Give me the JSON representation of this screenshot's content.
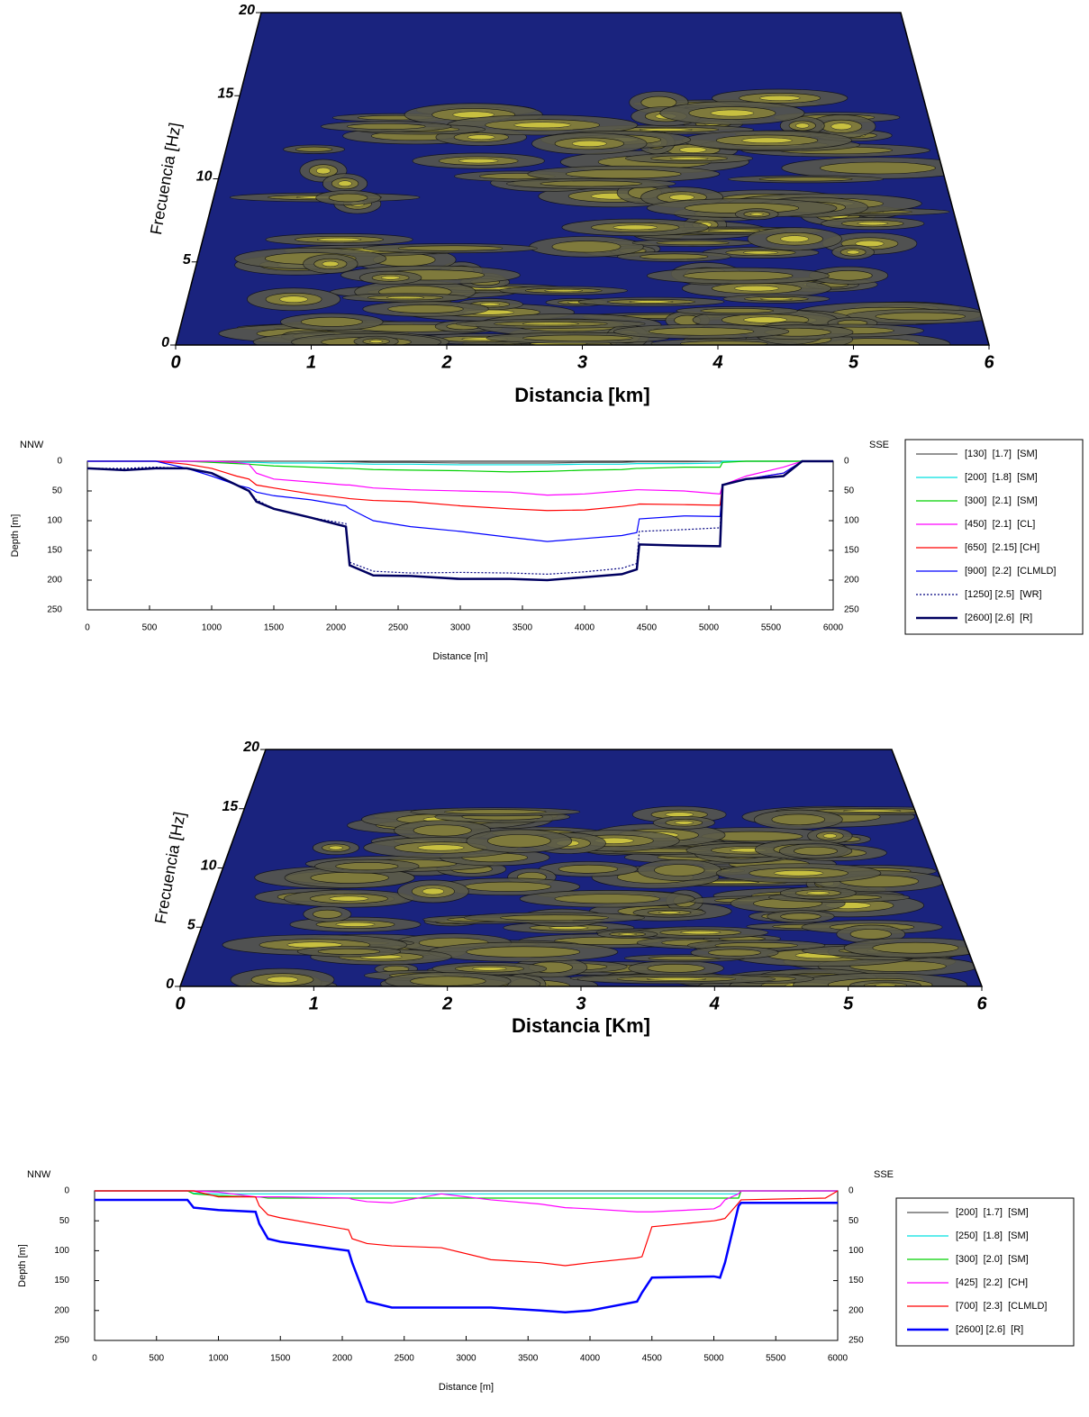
{
  "chart_data": [
    {
      "type": "contour",
      "xlabel": "Distancia [km]",
      "ylabel": "Frecuencia [Hz]",
      "xlim": [
        0,
        6
      ],
      "xticks": [
        0,
        1,
        2,
        3,
        4,
        5,
        6
      ],
      "ylim": [
        0,
        20
      ],
      "yticks": [
        0,
        5,
        10,
        15,
        20
      ]
    },
    {
      "type": "line",
      "xlabel": "Distance [m]",
      "ylabel": "Depth [m]",
      "left_label": "NNW",
      "right_label": "SSE",
      "x": [
        0,
        300,
        550,
        800,
        1000,
        1200,
        1300,
        1360,
        1500,
        1800,
        2080,
        2110,
        2300,
        2600,
        3000,
        3400,
        3700,
        4000,
        4300,
        4420,
        4440,
        4800,
        5090,
        5110,
        5300,
        5600,
        5750,
        6000
      ],
      "xlim": [
        0,
        6000
      ],
      "xticks": [
        0,
        500,
        1000,
        1500,
        2000,
        2500,
        3000,
        3500,
        4000,
        4500,
        5000,
        5500,
        6000
      ],
      "ylim": [
        0,
        250
      ],
      "yticks": [
        0,
        50,
        100,
        150,
        200,
        250
      ],
      "y_inverted": true,
      "y2lim": [
        0,
        250
      ],
      "y2ticks": [
        0,
        50,
        100,
        150,
        200,
        250
      ],
      "legend": "right",
      "series": [
        {
          "name": "[130]  [1.7]  [SM]",
          "color": "#555555",
          "values": [
            0,
            0,
            0,
            0,
            0,
            0,
            0,
            0,
            0,
            0,
            1,
            1,
            2,
            2,
            3,
            3,
            3,
            2,
            2,
            1,
            1,
            1,
            0,
            0,
            0,
            0,
            0,
            0
          ]
        },
        {
          "name": "[200]  [1.8]  [SM]",
          "color": "#00e0e0",
          "values": [
            0,
            0,
            0,
            0,
            1,
            2,
            2,
            2,
            3,
            3,
            4,
            4,
            5,
            5,
            6,
            6,
            6,
            5,
            5,
            4,
            4,
            4,
            3,
            0,
            0,
            0,
            0,
            0
          ]
        },
        {
          "name": "[300]  [2.1]  [SM]",
          "color": "#00d000",
          "values": [
            0,
            0,
            0,
            0,
            2,
            4,
            5,
            6,
            8,
            10,
            12,
            12,
            14,
            15,
            16,
            18,
            17,
            15,
            14,
            12,
            12,
            10,
            10,
            2,
            0,
            0,
            0,
            0
          ]
        },
        {
          "name": "[450]  [2.1]  [CL]",
          "color": "#ff00ff",
          "values": [
            0,
            0,
            0,
            0,
            0,
            2,
            5,
            20,
            30,
            35,
            40,
            40,
            45,
            48,
            50,
            52,
            57,
            55,
            50,
            48,
            48,
            50,
            55,
            40,
            25,
            10,
            0,
            0
          ]
        },
        {
          "name": "[650]  [2.15] [CH]",
          "color": "#ff0000",
          "values": [
            0,
            0,
            0,
            5,
            12,
            25,
            30,
            40,
            45,
            55,
            62,
            63,
            66,
            68,
            75,
            80,
            83,
            82,
            76,
            73,
            72,
            73,
            74,
            40,
            30,
            20,
            0,
            0
          ]
        },
        {
          "name": "[900]  [2.2]  [CLMLD]",
          "color": "#0000ff",
          "values": [
            0,
            0,
            0,
            12,
            25,
            40,
            45,
            52,
            58,
            65,
            75,
            80,
            100,
            110,
            118,
            128,
            135,
            130,
            125,
            120,
            97,
            92,
            93,
            40,
            30,
            20,
            0,
            0
          ]
        },
        {
          "name": "[1250] [2.5]  [WR]",
          "color": "#000080",
          "dash": "dotted",
          "values": [
            12,
            12,
            10,
            12,
            20,
            40,
            50,
            65,
            80,
            95,
            105,
            170,
            185,
            188,
            187,
            188,
            190,
            186,
            180,
            172,
            118,
            115,
            112,
            40,
            30,
            25,
            0,
            0
          ]
        },
        {
          "name": "[2600] [2.6]  [R]",
          "color": "#000060",
          "width": 2.5,
          "values": [
            12,
            15,
            12,
            12,
            20,
            40,
            50,
            68,
            80,
            95,
            110,
            175,
            192,
            193,
            198,
            198,
            200,
            195,
            190,
            182,
            140,
            142,
            143,
            40,
            30,
            25,
            0,
            0
          ]
        }
      ]
    },
    {
      "type": "contour",
      "xlabel": "Distancia [Km]",
      "ylabel": "Frecuencia [Hz]",
      "xlim": [
        0,
        6
      ],
      "xticks": [
        0,
        1,
        2,
        3,
        4,
        5,
        6
      ],
      "ylim": [
        0,
        20
      ],
      "yticks": [
        0,
        5,
        10,
        15,
        20
      ]
    },
    {
      "type": "line",
      "xlabel": "Distance [m]",
      "ylabel": "Depth [m]",
      "left_label": "NNW",
      "right_label": "SSE",
      "x": [
        0,
        750,
        800,
        1000,
        1300,
        1330,
        1400,
        1500,
        2050,
        2080,
        2200,
        2400,
        2800,
        3200,
        3600,
        3800,
        4000,
        4380,
        4420,
        4500,
        5000,
        5050,
        5090,
        5200,
        5220,
        5900,
        6000
      ],
      "xlim": [
        0,
        6000
      ],
      "xticks": [
        0,
        500,
        1000,
        1500,
        2000,
        2500,
        3000,
        3500,
        4000,
        4500,
        5000,
        5500,
        6000
      ],
      "ylim": [
        0,
        250
      ],
      "yticks": [
        0,
        50,
        100,
        150,
        200,
        250
      ],
      "y_inverted": true,
      "y2lim": [
        0,
        250
      ],
      "y2ticks": [
        0,
        50,
        100,
        150,
        200,
        250
      ],
      "legend": "right",
      "series": [
        {
          "name": "[200]  [1.7]  [SM]",
          "color": "#555555",
          "values": [
            0,
            0,
            0,
            0,
            0,
            0,
            0,
            0,
            0,
            0,
            0,
            0,
            0,
            0,
            0,
            0,
            0,
            0,
            0,
            0,
            0,
            0,
            0,
            0,
            0,
            0,
            0
          ]
        },
        {
          "name": "[250]  [1.8]  [SM]",
          "color": "#00e0e0",
          "values": [
            0,
            0,
            4,
            5,
            5,
            5,
            5,
            5,
            5,
            5,
            5,
            5,
            5,
            5,
            5,
            5,
            5,
            5,
            5,
            5,
            5,
            5,
            5,
            5,
            0,
            0,
            0
          ]
        },
        {
          "name": "[300]  [2.0]  [SM]",
          "color": "#00d000",
          "values": [
            0,
            0,
            5,
            8,
            10,
            10,
            12,
            12,
            12,
            12,
            12,
            12,
            12,
            12,
            12,
            12,
            12,
            12,
            12,
            12,
            12,
            12,
            12,
            12,
            0,
            0,
            0
          ]
        },
        {
          "name": "[425]  [2.2]  [CH]",
          "color": "#ff00ff",
          "values": [
            0,
            0,
            0,
            2,
            10,
            10,
            10,
            10,
            12,
            14,
            18,
            20,
            5,
            15,
            22,
            28,
            30,
            35,
            35,
            35,
            30,
            25,
            15,
            5,
            0,
            0,
            0
          ]
        },
        {
          "name": "[700]  [2.3]  [CLMLD]",
          "color": "#ff0000",
          "values": [
            0,
            0,
            0,
            10,
            10,
            25,
            40,
            45,
            65,
            80,
            88,
            92,
            95,
            115,
            120,
            125,
            120,
            112,
            110,
            60,
            50,
            48,
            46,
            20,
            15,
            12,
            0
          ]
        },
        {
          "name": "[2600] [2.6]  [R]",
          "color": "#0000ff",
          "width": 2.5,
          "values": [
            15,
            15,
            28,
            32,
            35,
            55,
            80,
            85,
            100,
            120,
            185,
            195,
            195,
            195,
            200,
            203,
            200,
            185,
            170,
            145,
            143,
            145,
            120,
            25,
            20,
            20,
            20
          ]
        }
      ]
    }
  ]
}
